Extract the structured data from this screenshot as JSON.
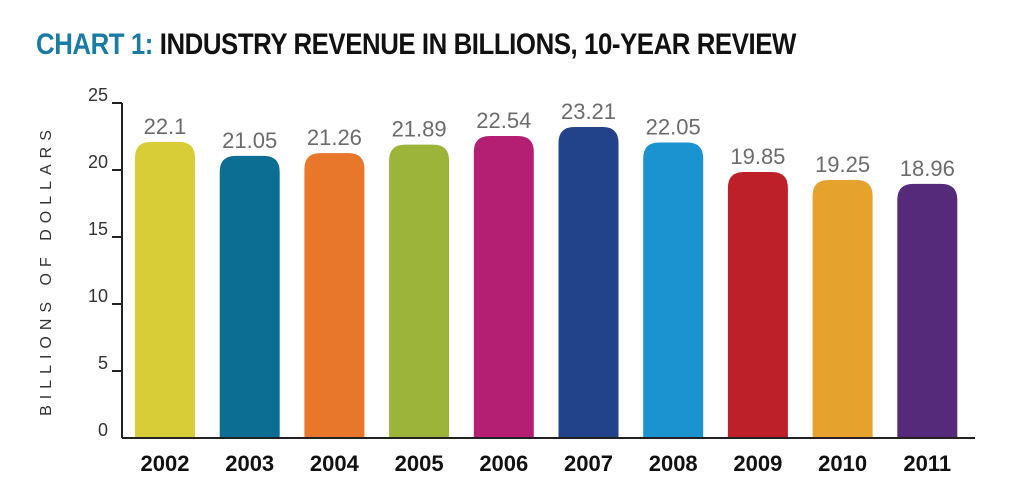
{
  "chart_data": {
    "type": "bar",
    "title_prefix": "CHART 1:",
    "title": "INDUSTRY REVENUE IN BILLIONS, 10-YEAR REVIEW",
    "xlabel": "",
    "ylabel": "BILLIONS OF DOLLARS",
    "ylim": [
      0,
      25
    ],
    "yticks": [
      0,
      5,
      10,
      15,
      20,
      25
    ],
    "grid": false,
    "categories": [
      "2002",
      "2003",
      "2004",
      "2005",
      "2006",
      "2007",
      "2008",
      "2009",
      "2010",
      "2011"
    ],
    "values": [
      22.1,
      21.05,
      21.26,
      21.89,
      22.54,
      23.21,
      22.05,
      19.85,
      19.25,
      18.96
    ],
    "value_labels": [
      "22.1",
      "21.05",
      "21.26",
      "21.89",
      "22.54",
      "23.21",
      "22.05",
      "19.85",
      "19.25",
      "18.96"
    ],
    "colors": [
      "#d8cc37",
      "#0d6e93",
      "#e8762b",
      "#9db43b",
      "#b51f73",
      "#22428a",
      "#1b93d1",
      "#bd2029",
      "#e5a22c",
      "#562a7a"
    ]
  },
  "colors": {
    "title_prefix": "#1a7ca4",
    "title": "#111111",
    "axis": "#222222",
    "value_label": "#6b6b6b"
  }
}
